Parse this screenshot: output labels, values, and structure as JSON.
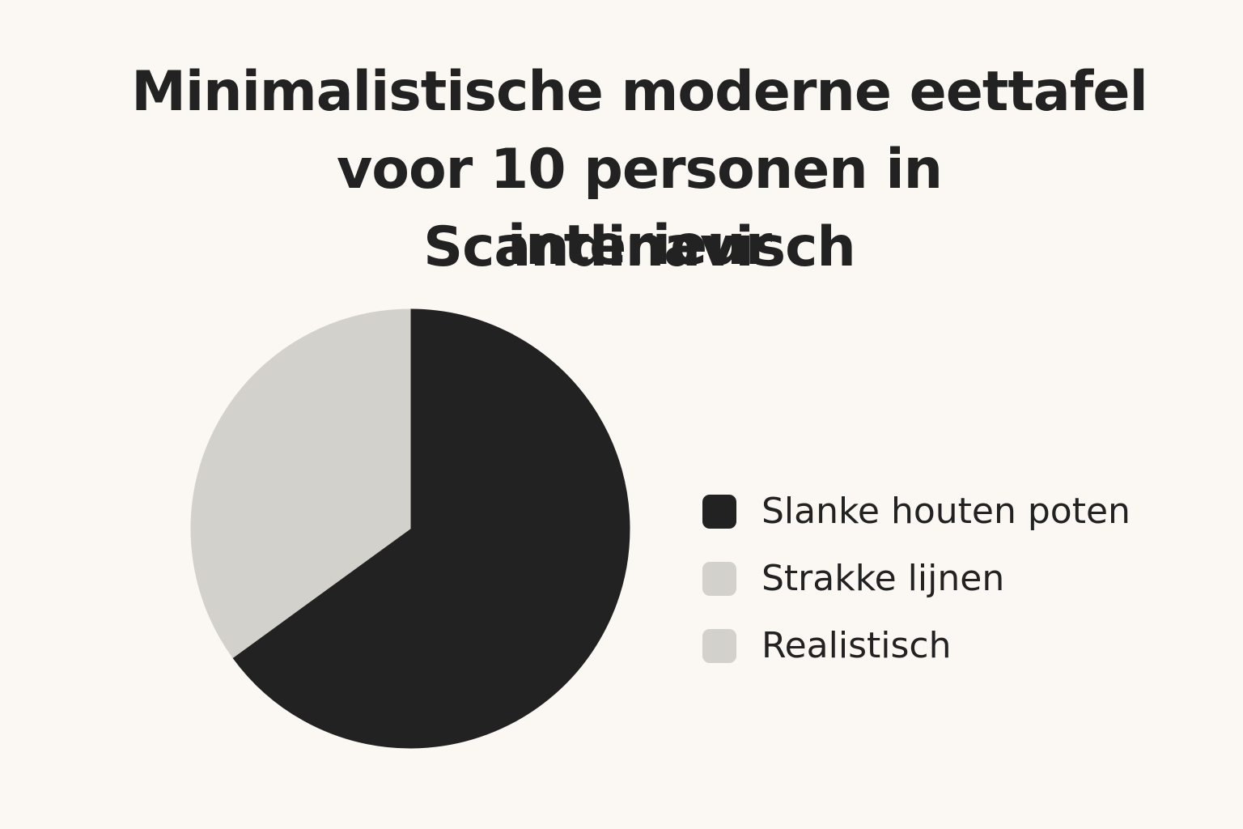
{
  "chart_data": {
    "type": "pie",
    "title_lines": [
      "Minimalistische moderne eettafel",
      "voor 10 personen in Scandinavisch",
      "interieur"
    ],
    "slices": [
      {
        "label": "Slanke houten poten",
        "value": 65,
        "color": "#222222"
      },
      {
        "label": "Strakke lijnen",
        "value": 35,
        "color": "#d3d1cc"
      },
      {
        "label": "Realistisch",
        "value": 0,
        "color": "#d3d1cc"
      }
    ],
    "legend_position": "right",
    "start_angle": "12 o'clock",
    "direction": "clockwise"
  },
  "colors": {
    "background": "#fbf8f3",
    "text": "#222222"
  }
}
